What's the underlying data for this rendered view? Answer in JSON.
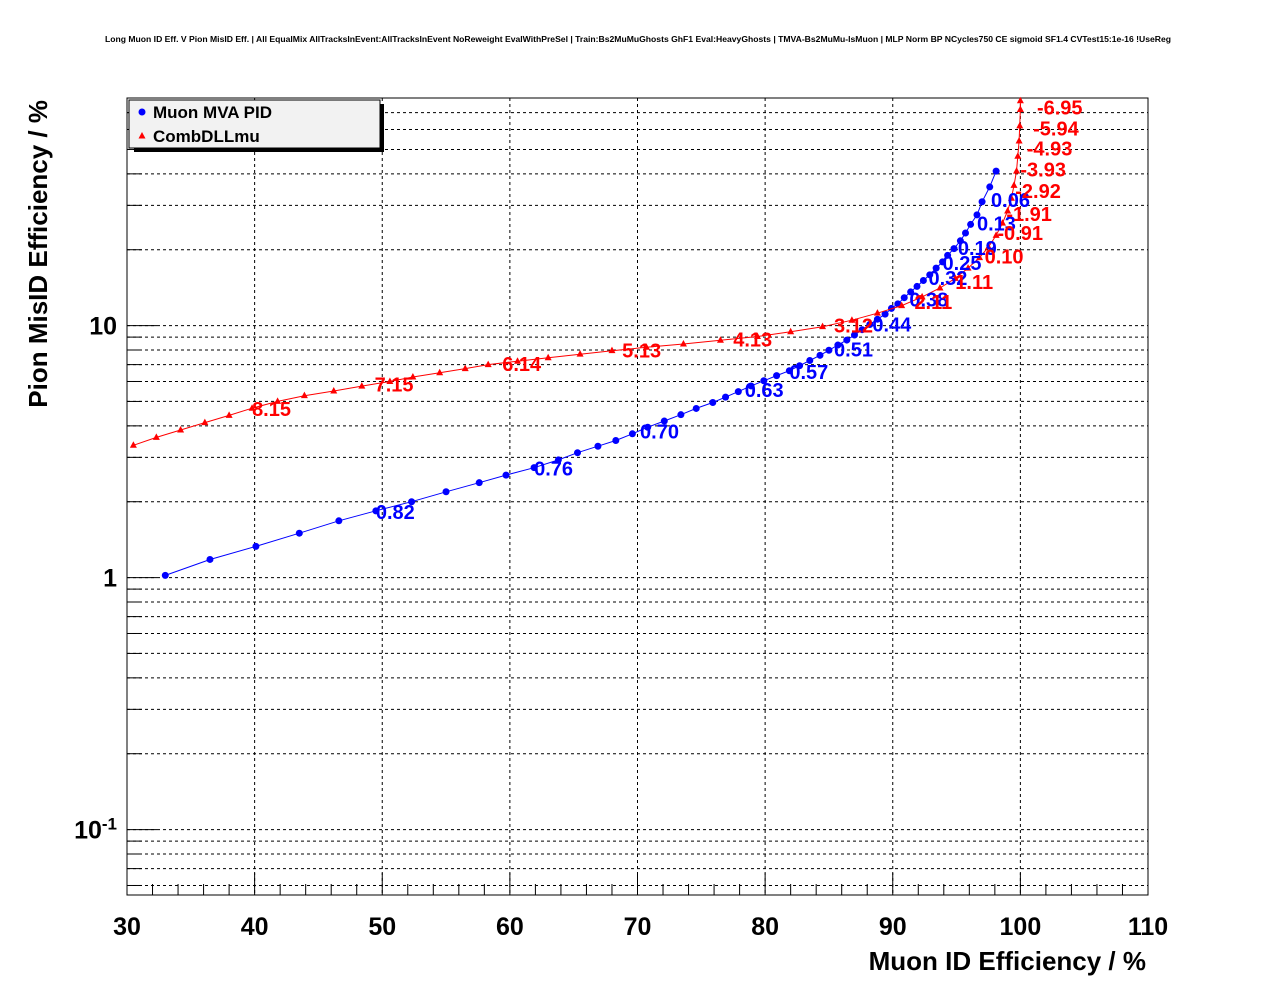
{
  "title": "Long Muon ID Eff. V Pion MisID Eff. | All EqualMix AllTracksInEvent:AllTracksInEvent NoReweight EvalWithPreSel | Train:Bs2MuMuGhosts GhF1 Eval:HeavyGhosts | TMVA-Bs2MuMu-IsMuon | MLP Norm BP NCycles750 CE sigmoid SF1.4 CVTest15:1e-16 !UseReg",
  "chart_data": {
    "type": "line",
    "title": "Long Muon ID Eff. V Pion MisID Eff. | All EqualMix AllTracksInEvent:AllTracksInEvent NoReweight EvalWithPreSel | Train:Bs2MuMuGhosts GhF1 Eval:HeavyGhosts | TMVA-Bs2MuMu-IsMuon | MLP Norm BP NCycles750 CE sigmoid SF1.4 CVTest15:1e-16 !UseReg",
    "xlabel": "Muon ID Efficiency / %",
    "ylabel": "Pion MisID Efficiency / %",
    "xlim": [
      30,
      110
    ],
    "ylim": [
      0.055,
      80
    ],
    "yscale": "log",
    "grid": true,
    "legend_position": "top-left",
    "x_ticks": [
      "30",
      "40",
      "50",
      "60",
      "70",
      "80",
      "90",
      "100",
      "110"
    ],
    "y_ticks": [
      {
        "base": "10",
        "exp": "-1",
        "value": 0.1
      },
      {
        "base": "1",
        "exp": "",
        "value": 1
      },
      {
        "base": "10",
        "exp": "",
        "value": 10
      }
    ],
    "series": [
      {
        "name": "Muon MVA PID",
        "color": "#0000ff",
        "marker": "circle",
        "points": [
          [
            33.0,
            1.02
          ],
          [
            36.5,
            1.18
          ],
          [
            40.1,
            1.33
          ],
          [
            43.5,
            1.5
          ],
          [
            46.6,
            1.68
          ],
          [
            49.5,
            1.84
          ],
          [
            52.3,
            2.0
          ],
          [
            55.0,
            2.19
          ],
          [
            57.6,
            2.38
          ],
          [
            59.7,
            2.55
          ],
          [
            61.9,
            2.73
          ],
          [
            63.8,
            2.93
          ],
          [
            65.3,
            3.13
          ],
          [
            66.9,
            3.32
          ],
          [
            68.3,
            3.5
          ],
          [
            69.6,
            3.72
          ],
          [
            70.8,
            3.95
          ],
          [
            72.1,
            4.18
          ],
          [
            73.4,
            4.43
          ],
          [
            74.6,
            4.69
          ],
          [
            75.9,
            4.95
          ],
          [
            76.9,
            5.2
          ],
          [
            77.9,
            5.47
          ],
          [
            78.9,
            5.76
          ],
          [
            79.9,
            6.04
          ],
          [
            80.9,
            6.33
          ],
          [
            81.9,
            6.62
          ],
          [
            82.7,
            6.93
          ],
          [
            83.5,
            7.27
          ],
          [
            84.3,
            7.62
          ],
          [
            85.0,
            7.98
          ],
          [
            85.7,
            8.37
          ],
          [
            86.4,
            8.76
          ],
          [
            87.0,
            9.17
          ],
          [
            87.6,
            9.63
          ],
          [
            88.2,
            10.1
          ],
          [
            88.8,
            10.6
          ],
          [
            89.4,
            11.1
          ],
          [
            89.9,
            11.7
          ],
          [
            90.4,
            12.2
          ],
          [
            90.9,
            12.9
          ],
          [
            91.4,
            13.6
          ],
          [
            91.9,
            14.3
          ],
          [
            92.4,
            15.1
          ],
          [
            92.9,
            15.9
          ],
          [
            93.4,
            16.9
          ],
          [
            93.9,
            17.9
          ],
          [
            94.3,
            19.0
          ],
          [
            94.8,
            20.2
          ],
          [
            95.3,
            21.7
          ],
          [
            95.7,
            23.3
          ],
          [
            96.1,
            25.2
          ],
          [
            96.6,
            27.5
          ],
          [
            97.0,
            31.0
          ],
          [
            97.6,
            35.5
          ],
          [
            98.1,
            41.0
          ]
        ],
        "labels": [
          {
            "x": 49.5,
            "y": 1.84,
            "text": "0.82"
          },
          {
            "x": 61.9,
            "y": 2.73,
            "text": "0.76"
          },
          {
            "x": 70.2,
            "y": 3.84,
            "text": "0.70"
          },
          {
            "x": 78.4,
            "y": 5.6,
            "text": "0.63"
          },
          {
            "x": 81.9,
            "y": 6.6,
            "text": "0.57"
          },
          {
            "x": 85.4,
            "y": 8.1,
            "text": "0.51"
          },
          {
            "x": 88.4,
            "y": 10.2,
            "text": "0.44"
          },
          {
            "x": 91.3,
            "y": 12.8,
            "text": "0.38"
          },
          {
            "x": 92.8,
            "y": 15.6,
            "text": "0.32"
          },
          {
            "x": 93.9,
            "y": 17.9,
            "text": "0.25"
          },
          {
            "x": 95.1,
            "y": 20.5,
            "text": "0.19"
          },
          {
            "x": 96.6,
            "y": 25.7,
            "text": "0.13"
          },
          {
            "x": 97.7,
            "y": 31.8,
            "text": "0.06"
          }
        ]
      },
      {
        "name": "CombDLLmu",
        "color": "#ff0000",
        "marker": "triangle",
        "points": [
          [
            30.5,
            3.35
          ],
          [
            32.3,
            3.6
          ],
          [
            34.2,
            3.85
          ],
          [
            36.1,
            4.12
          ],
          [
            38.0,
            4.4
          ],
          [
            39.8,
            4.7
          ],
          [
            41.8,
            5.0
          ],
          [
            43.9,
            5.27
          ],
          [
            46.2,
            5.5
          ],
          [
            48.4,
            5.75
          ],
          [
            50.6,
            6.0
          ],
          [
            52.4,
            6.25
          ],
          [
            54.5,
            6.5
          ],
          [
            56.5,
            6.75
          ],
          [
            58.3,
            7.0
          ],
          [
            60.6,
            7.22
          ],
          [
            63.0,
            7.45
          ],
          [
            65.5,
            7.7
          ],
          [
            68.0,
            7.95
          ],
          [
            70.7,
            8.2
          ],
          [
            73.6,
            8.45
          ],
          [
            76.5,
            8.75
          ],
          [
            79.4,
            9.05
          ],
          [
            82.0,
            9.45
          ],
          [
            84.5,
            9.9
          ],
          [
            86.8,
            10.5
          ],
          [
            88.8,
            11.2
          ],
          [
            90.7,
            12.0
          ],
          [
            92.3,
            13.0
          ],
          [
            93.7,
            14.1
          ],
          [
            94.9,
            15.4
          ],
          [
            95.9,
            16.9
          ],
          [
            96.8,
            18.6
          ],
          [
            97.5,
            20.5
          ],
          [
            98.1,
            22.8
          ],
          [
            98.6,
            25.5
          ],
          [
            99.0,
            28.5
          ],
          [
            99.3,
            32.0
          ],
          [
            99.5,
            36.0
          ],
          [
            99.7,
            41.0
          ],
          [
            99.8,
            47.0
          ],
          [
            99.9,
            54.0
          ],
          [
            99.95,
            62.0
          ],
          [
            100.0,
            72.0
          ],
          [
            100.0,
            78.0
          ]
        ],
        "labels": [
          {
            "x": 39.8,
            "y": 4.7,
            "text": "8.15"
          },
          {
            "x": 49.4,
            "y": 5.9,
            "text": "7.15"
          },
          {
            "x": 59.4,
            "y": 7.1,
            "text": "6.14"
          },
          {
            "x": 68.8,
            "y": 8.05,
            "text": "5.13"
          },
          {
            "x": 77.5,
            "y": 8.9,
            "text": "4.13"
          },
          {
            "x": 85.4,
            "y": 10.1,
            "text": "3.12"
          },
          {
            "x": 91.7,
            "y": 12.5,
            "text": "2.11"
          },
          {
            "x": 94.9,
            "y": 15.0,
            "text": "1.11"
          },
          {
            "x": 97.2,
            "y": 19.0,
            "text": "0.10"
          },
          {
            "x": 98.2,
            "y": 23.5,
            "text": "-0.91"
          },
          {
            "x": 98.9,
            "y": 28.0,
            "text": "-1.91"
          },
          {
            "x": 99.6,
            "y": 34.5,
            "text": "-2.92"
          },
          {
            "x": 100.0,
            "y": 42.0,
            "text": "-3.93"
          },
          {
            "x": 100.5,
            "y": 51.0,
            "text": "-4.93"
          },
          {
            "x": 101.0,
            "y": 61.0,
            "text": "-5.94"
          },
          {
            "x": 101.3,
            "y": 74.0,
            "text": "-6.95"
          }
        ]
      }
    ]
  }
}
